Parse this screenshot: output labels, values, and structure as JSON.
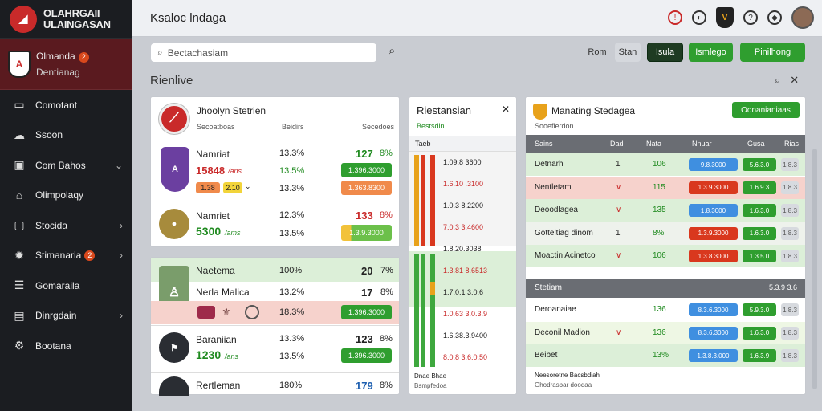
{
  "brand": {
    "line1": "OLAHRGAII",
    "line2": "ULAINGASAN"
  },
  "sidebar": {
    "active": {
      "title": "Olmanda",
      "subtitle": "Dentianag",
      "badge": "2"
    },
    "items": [
      {
        "label": "Comotant",
        "icon": "chat-icon"
      },
      {
        "label": "Ssoon",
        "icon": "cloud-icon"
      },
      {
        "label": "Com Bahos",
        "icon": "box-icon",
        "chevron": "⌄"
      },
      {
        "label": "Olimpolaqy",
        "icon": "tag-icon"
      },
      {
        "label": "Stocida",
        "icon": "window-icon",
        "chevron": "›"
      },
      {
        "label": "Stimanaria",
        "icon": "gear-icon",
        "chevron": "›",
        "badge": "2"
      },
      {
        "label": "Gomaraila",
        "icon": "list-icon"
      },
      {
        "label": "Dinrgdain",
        "icon": "document-icon",
        "chevron": "›"
      },
      {
        "label": "Bootana",
        "icon": "settings-icon"
      }
    ]
  },
  "topbar": {
    "title": "Ksaloc lndaga"
  },
  "search": {
    "placeholder": "Bectachasiam",
    "filters": [
      "Rom",
      "Stan",
      "Isula",
      "Ismlego",
      "Pinilhong"
    ]
  },
  "section": {
    "title": "Rienlive"
  },
  "live": {
    "header": {
      "name": "Jhoolyn Stetrien",
      "col1": "Secoatboas",
      "col2": "Beidirs",
      "col3": "Secedoes"
    },
    "matches": [
      {
        "name": "Namriat",
        "amount": "15848",
        "unit": "/ans",
        "pct": "13.3%",
        "pct2": "13.5%",
        "pct3": "13.3%",
        "score": "127",
        "s2": "8%",
        "pill1": "1.396.3000",
        "pill2": "1.363.8300",
        "mini1": "1.38",
        "mini2": "2.10"
      },
      {
        "name": "Namriet",
        "amount": "5300",
        "unit": "/ams",
        "pct": "12.3%",
        "pct2": "13.5%",
        "score": "133",
        "s2": "8%",
        "pill1": "1.3.9.3000"
      }
    ],
    "lower": [
      {
        "name": "Naetema",
        "pct": "100%",
        "score": "20",
        "s2": "7%"
      },
      {
        "name": "Nerla Malica",
        "pct": "13.2%",
        "score": "17",
        "s2": "8%"
      },
      {
        "name": "",
        "pct": "18.3%",
        "pill": "1.396.3000"
      },
      {
        "name": "Baraniian",
        "amount": "1230",
        "unit": "/ans",
        "pct": "13.3%",
        "pct2": "13.5%",
        "score": "123",
        "s2": "8%",
        "pill": "1.396.3000"
      },
      {
        "name": "Rertleman",
        "pct": "180%",
        "score": "179",
        "s2": "8%"
      }
    ]
  },
  "bets": {
    "title": "Riestansian",
    "subtitle": "Bestsdin",
    "label": "Taeb",
    "odds": [
      "1.09.8 3600",
      "1.6.10 .3100",
      "1.0.3 8.2200",
      "7.0.3 3.4600",
      "1.8.20.3038",
      "1.3.81 8.6513",
      "1.7.0.1 3.0.6",
      "1.0.63 3.0.3.9",
      "1.6.38.3.9400",
      "8.0.8 3.6.0.50"
    ],
    "foot": [
      "Dnae Bhae",
      "Bsmpfedoa"
    ]
  },
  "standings": {
    "title": "Manating Stedagea",
    "subtitle": "Sooefierdon",
    "button": "Oonanianiaas",
    "headers": [
      "Sains",
      "Dad",
      "Nata",
      "Nnuar",
      "Gusa",
      "Rias"
    ],
    "rows": [
      {
        "team": "Detnarh",
        "n": "1",
        "v": "106",
        "o1": "9.8.3000",
        "o2": "5.6.3.0",
        "o3": "1.8.3",
        "bg": "#dcefd8"
      },
      {
        "team": "Nentletam",
        "n": "∨",
        "v": "115",
        "o1": "1.3.9.3000",
        "o2": "1.6.9.3",
        "o3": "1.8.3",
        "bg": "#f6d2cc"
      },
      {
        "team": "Deoodlagea",
        "n": "∨",
        "v": "135",
        "o1": "1.8.3000",
        "o2": "1.6.3.0",
        "o3": "1.8.3",
        "bg": "#dcefd8"
      },
      {
        "team": "Gotteltiag dinom",
        "n": "1",
        "v": "8%",
        "o1": "1.3.9.3000",
        "o2": "1.6.3.0",
        "o3": "1.8.3",
        "bg": "#eef2ec"
      },
      {
        "team": "Moactin Acinetco",
        "n": "∨",
        "v": "106",
        "o1": "1.3.8.3000",
        "o2": "1.3.5.0",
        "o3": "1.8.3",
        "bg": "#dcefd8"
      }
    ],
    "group": {
      "label": "Stetiam",
      "value": "5.3.9 3.6"
    },
    "rows2": [
      {
        "team": "Deroanaiae",
        "v": "136",
        "o1": "8.3.6.3000",
        "o2": "5.9.3.0",
        "o3": "1.8.3",
        "bg": "#ffffff"
      },
      {
        "team": "Deconil Madion",
        "n": "∨",
        "v": "136",
        "o1": "8.3.6.3000",
        "o2": "1.6.3.0",
        "o3": "1.8.3",
        "bg": "#eef7e4"
      },
      {
        "team": "Beibet",
        "v": "13%",
        "o1": "1.3.8.3.000",
        "o2": "1.6.3.9",
        "o3": "1.8.3",
        "bg": "#dcefd8"
      }
    ],
    "foot": [
      "Neesoretne Bacsbdiah",
      "Ghodrasbar doodaa"
    ]
  }
}
